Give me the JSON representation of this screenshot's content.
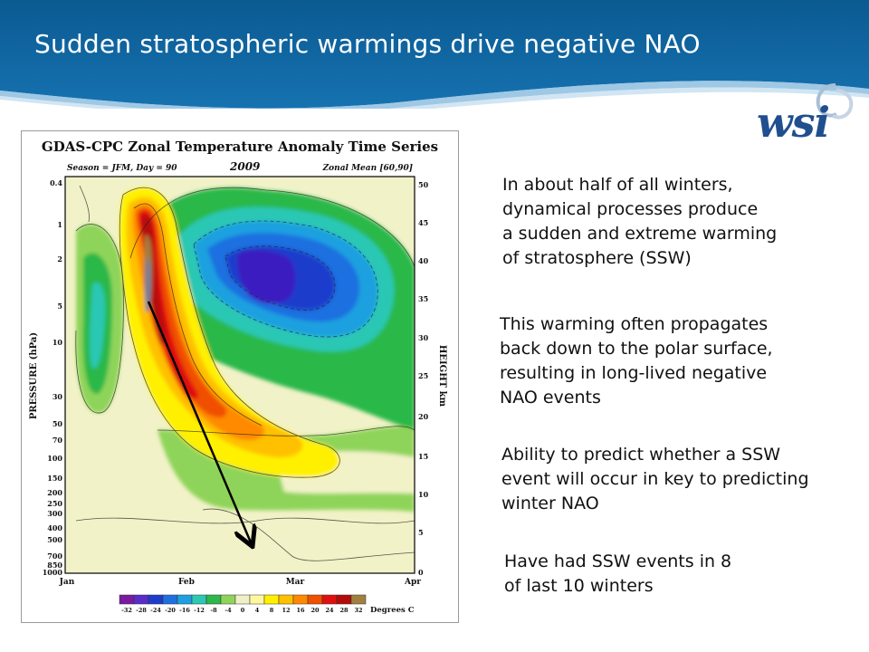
{
  "slide": {
    "title": "Sudden stratospheric warmings drive negative NAO",
    "logo_text": "wsi",
    "colors": {
      "header_blue": "#0d5d94",
      "header_light": "#2a85c2",
      "logo_blue": "#1f4f8f"
    }
  },
  "figure": {
    "title": "GDAS-CPC Zonal Temperature Anomaly Time Series",
    "season_label": "Season = JFM, Day = 90",
    "year_label": "2009",
    "zonal_label": "Zonal Mean [60,90]",
    "y_left_label": "PRESSURE (hPa)",
    "y_right_label": "HEIGHT km",
    "pressure_ticks": [
      "0.4",
      "1",
      "2",
      "5",
      "10",
      "30",
      "50",
      "70",
      "100",
      "150",
      "200",
      "250",
      "300",
      "400",
      "500",
      "700",
      "850",
      "1000"
    ],
    "height_ticks": [
      "50",
      "45",
      "40",
      "35",
      "30",
      "25",
      "20",
      "15",
      "10",
      "5",
      "0"
    ],
    "month_ticks": [
      "Jan",
      "Feb",
      "Mar",
      "Apr"
    ],
    "colorbar_ticks": [
      "-32",
      "-28",
      "-24",
      "-20",
      "-16",
      "-12",
      "-8",
      "-4",
      "0",
      "4",
      "8",
      "12",
      "16",
      "20",
      "24",
      "28",
      "32"
    ],
    "colorbar_unit": "Degrees C",
    "colorbar_colors": [
      "#7a1aa0",
      "#5a2cc8",
      "#1e3ccc",
      "#1f6fe0",
      "#1ea0e0",
      "#2cc8b4",
      "#2cb84a",
      "#8fd45a",
      "#f0f0c8",
      "#fff7a0",
      "#fff000",
      "#ffc000",
      "#ff8a00",
      "#f05000",
      "#e01010",
      "#b40a0a",
      "#a08040"
    ]
  },
  "paragraphs": [
    {
      "lines": [
        "In about half of all winters,",
        "dynamical processes produce",
        "a sudden and extreme warming",
        "of stratosphere (SSW)"
      ]
    },
    {
      "lines": [
        "This warming often propagates",
        "back down to the polar surface,",
        "resulting in long-lived negative",
        "NAO events"
      ]
    },
    {
      "lines": [
        "Ability to predict whether a SSW",
        "event will occur in key to predicting",
        "winter NAO"
      ]
    },
    {
      "lines": [
        "Have had SSW events in 8",
        "of last 10 winters"
      ]
    }
  ]
}
